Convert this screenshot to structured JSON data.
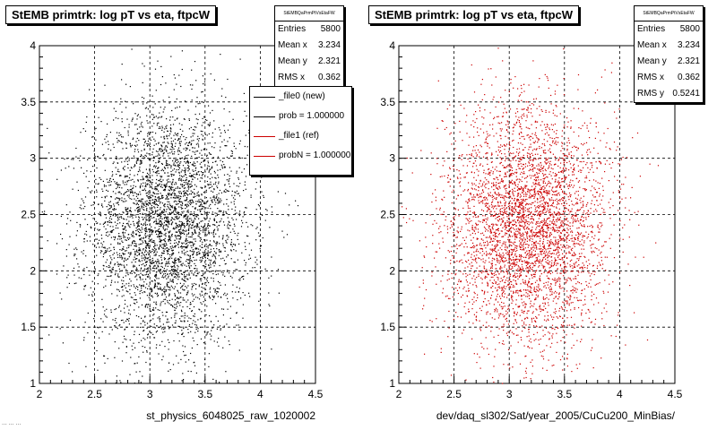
{
  "chart_data": [
    {
      "type": "scatter",
      "title": "StEMB primtrk: log pT vs eta, ftpcW",
      "xlabel": "st_physics_6048025_raw_1020002",
      "ylabel": "",
      "xlim": [
        2,
        4.5
      ],
      "ylim": [
        1,
        4
      ],
      "x_ticks": [
        "2",
        "2.5",
        "3",
        "3.5",
        "4",
        "4.5"
      ],
      "y_ticks": [
        "1",
        "1.5",
        "2",
        "2.5",
        "3",
        "3.5",
        "4"
      ],
      "grid": true,
      "marker_color": "#000000",
      "stats": {
        "header": "StEMBQaPrmPtVsEtaFW",
        "rows": [
          {
            "label": "Entries",
            "value": "5800"
          },
          {
            "label": "Mean x",
            "value": "3.234"
          },
          {
            "label": "Mean y",
            "value": "2.321"
          },
          {
            "label": "RMS x",
            "value": "0.362"
          }
        ]
      },
      "legend": {
        "placement": "top-right",
        "entries": [
          {
            "label": "_file0 (new)",
            "color": "#000000"
          },
          {
            "label": "prob = 1.000000",
            "color": "#000000"
          },
          {
            "label": "_file1 (ref)",
            "color": "#cc0000"
          },
          {
            "label": "probN = 1.000000",
            "color": "#cc0000"
          }
        ]
      },
      "distribution": {
        "entries": 5800,
        "mean_x": 3.234,
        "mean_y": 2.321,
        "rms_x": 0.362,
        "rms_y": 0.5241
      }
    },
    {
      "type": "scatter",
      "title": "StEMB primtrk: log pT vs eta, ftpcW",
      "xlabel": "dev/daq_sl302/Sat/year_2005/CuCu200_MinBias/",
      "ylabel": "",
      "xlim": [
        2,
        4.5
      ],
      "ylim": [
        1,
        4
      ],
      "x_ticks": [
        "2",
        "2.5",
        "3",
        "3.5",
        "4",
        "4.5"
      ],
      "y_ticks": [
        "1",
        "1.5",
        "2",
        "2.5",
        "3",
        "3.5",
        "4"
      ],
      "grid": true,
      "marker_color": "#cc0000",
      "stats": {
        "header": "StEMBQaPrmPtVsEtaFW",
        "rows": [
          {
            "label": "Entries",
            "value": "5800"
          },
          {
            "label": "Mean x",
            "value": "3.234"
          },
          {
            "label": "Mean y",
            "value": "2.321"
          },
          {
            "label": "RMS x",
            "value": "0.362"
          },
          {
            "label": "RMS y",
            "value": "0.5241"
          }
        ]
      },
      "distribution": {
        "entries": 5800,
        "mean_x": 3.234,
        "mean_y": 2.321,
        "rms_x": 0.362,
        "rms_y": 0.5241
      }
    }
  ],
  "footer_text": "... ... ..."
}
